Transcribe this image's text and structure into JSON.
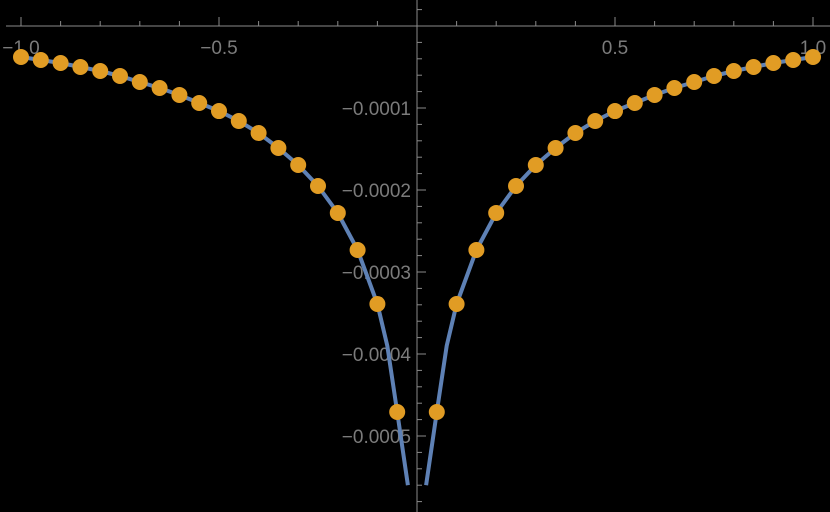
{
  "chart_data": {
    "type": "line",
    "title": "",
    "xlabel": "",
    "ylabel": "",
    "xlim": [
      -1.0,
      1.0
    ],
    "ylim": [
      -0.00059,
      3e-05
    ],
    "grid": false,
    "legend": null,
    "x_ticks": [
      {
        "value": -1.0,
        "label": "−1.0"
      },
      {
        "value": -0.5,
        "label": "−0.5"
      },
      {
        "value": 0.5,
        "label": "0.5"
      },
      {
        "value": 1.0,
        "label": "1.0"
      }
    ],
    "y_ticks": [
      {
        "value": -0.0001,
        "label": "−0.0001"
      },
      {
        "value": -0.0002,
        "label": "−0.0002"
      },
      {
        "value": -0.0003,
        "label": "−0.0003"
      },
      {
        "value": -0.0004,
        "label": "−0.0004"
      },
      {
        "value": -0.0005,
        "label": "−0.0005"
      }
    ],
    "series": [
      {
        "name": "curve",
        "type": "line",
        "color": "#5E81B5",
        "x": [
          -1.0,
          -0.95,
          -0.9,
          -0.85,
          -0.8,
          -0.75,
          -0.7,
          -0.65,
          -0.6,
          -0.55,
          -0.5,
          -0.45,
          -0.4,
          -0.35,
          -0.3,
          -0.25,
          -0.2,
          -0.15,
          -0.1,
          -0.075,
          -0.05,
          -0.035,
          -0.023,
          0.023,
          0.035,
          0.05,
          0.075,
          0.1,
          0.15,
          0.2,
          0.25,
          0.3,
          0.35,
          0.4,
          0.45,
          0.5,
          0.55,
          0.6,
          0.65,
          0.7,
          0.75,
          0.8,
          0.85,
          0.9,
          0.95,
          1.0
        ],
        "y": [
          -3.78e-05,
          -4.15e-05,
          -4.51e-05,
          -5e-05,
          -5.49e-05,
          -6.1e-05,
          -6.83e-05,
          -7.56e-05,
          -8.41e-05,
          -9.39e-05,
          -0.0001037,
          -0.0001159,
          -0.0001305,
          -0.0001488,
          -0.0001695,
          -0.0001951,
          -0.000228,
          -0.0002732,
          -0.000339,
          -0.00039,
          -0.0004707,
          -0.00052,
          -0.00056,
          -0.00056,
          -0.00052,
          -0.0004707,
          -0.00039,
          -0.000339,
          -0.0002732,
          -0.000228,
          -0.0001951,
          -0.0001695,
          -0.0001488,
          -0.0001305,
          -0.0001159,
          -0.0001037,
          -9.39e-05,
          -8.41e-05,
          -7.56e-05,
          -6.83e-05,
          -6.1e-05,
          -5.49e-05,
          -5e-05,
          -4.51e-05,
          -4.15e-05,
          -3.78e-05
        ]
      },
      {
        "name": "points",
        "type": "scatter",
        "color": "#E19C24",
        "x": [
          -1.0,
          -0.95,
          -0.9,
          -0.85,
          -0.8,
          -0.75,
          -0.7,
          -0.65,
          -0.6,
          -0.55,
          -0.5,
          -0.45,
          -0.4,
          -0.35,
          -0.3,
          -0.25,
          -0.2,
          -0.15,
          -0.1,
          -0.05,
          0.05,
          0.1,
          0.15,
          0.2,
          0.25,
          0.3,
          0.35,
          0.4,
          0.45,
          0.5,
          0.55,
          0.6,
          0.65,
          0.7,
          0.75,
          0.8,
          0.85,
          0.9,
          0.95,
          1.0
        ],
        "y": [
          -3.78e-05,
          -4.15e-05,
          -4.51e-05,
          -5e-05,
          -5.49e-05,
          -6.1e-05,
          -6.83e-05,
          -7.56e-05,
          -8.41e-05,
          -9.39e-05,
          -0.0001037,
          -0.0001159,
          -0.0001305,
          -0.0001488,
          -0.0001695,
          -0.0001951,
          -0.000228,
          -0.0002732,
          -0.000339,
          -0.0004707,
          -0.0004707,
          -0.000339,
          -0.0002732,
          -0.000228,
          -0.0001951,
          -0.0001695,
          -0.0001488,
          -0.0001305,
          -0.0001159,
          -0.0001037,
          -9.39e-05,
          -8.41e-05,
          -7.56e-05,
          -6.83e-05,
          -6.1e-05,
          -5.49e-05,
          -5e-05,
          -4.51e-05,
          -4.15e-05,
          -3.78e-05
        ]
      }
    ]
  },
  "style": {
    "background": "#000000",
    "axis_color": "#8a8a8a",
    "label_color": "#7b7b7b",
    "line_color": "#5E81B5",
    "point_color": "#E19C24"
  }
}
